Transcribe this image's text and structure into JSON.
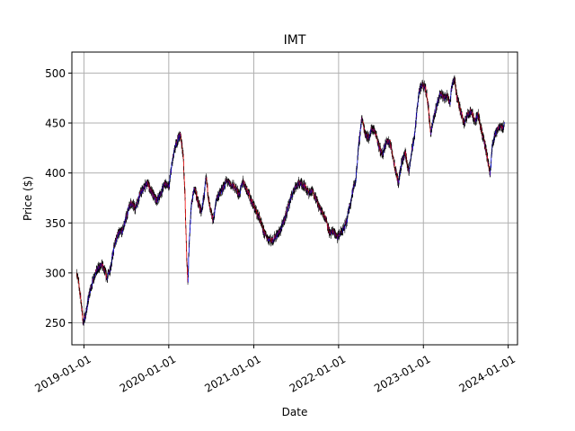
{
  "chart_data": {
    "type": "line",
    "title": "IMT",
    "xlabel": "Date",
    "ylabel": "Price ($)",
    "x_ticks": [
      "2019-01-01",
      "2020-01-01",
      "2021-01-01",
      "2022-01-01",
      "2023-01-01",
      "2024-01-01"
    ],
    "y_ticks": [
      250,
      300,
      350,
      400,
      450,
      500
    ],
    "xlim": [
      "2018-11-10",
      "2024-02-10"
    ],
    "ylim": [
      228,
      521
    ],
    "grid": true,
    "legend": "none",
    "colors": {
      "body": "#0000ff",
      "wick": "#000000",
      "down": "#ff0000",
      "grid": "#b0b0b0"
    },
    "series": [
      {
        "style": "candlestick",
        "x": [
          "2018-12-01",
          "2018-12-10",
          "2018-12-20",
          "2018-12-28",
          "2019-01-08",
          "2019-01-25",
          "2019-02-15",
          "2019-03-05",
          "2019-03-20",
          "2019-04-10",
          "2019-04-25",
          "2019-05-10",
          "2019-05-25",
          "2019-06-15",
          "2019-07-01",
          "2019-07-20",
          "2019-08-10",
          "2019-08-28",
          "2019-09-15",
          "2019-10-01",
          "2019-10-20",
          "2019-11-10",
          "2019-11-28",
          "2019-12-15",
          "2020-01-01",
          "2020-01-15",
          "2020-01-28",
          "2020-02-10",
          "2020-02-20",
          "2020-03-02",
          "2020-03-10",
          "2020-03-17",
          "2020-03-23",
          "2020-03-28",
          "2020-04-08",
          "2020-04-20",
          "2020-05-05",
          "2020-05-20",
          "2020-06-01",
          "2020-06-10",
          "2020-06-25",
          "2020-07-10",
          "2020-07-25",
          "2020-08-15",
          "2020-09-05",
          "2020-09-25",
          "2020-10-15",
          "2020-10-30",
          "2020-11-15",
          "2020-12-05",
          "2020-12-25",
          "2021-01-10",
          "2021-01-25",
          "2021-02-10",
          "2021-03-01",
          "2021-03-20",
          "2021-04-10",
          "2021-04-25",
          "2021-05-15",
          "2021-06-05",
          "2021-06-25",
          "2021-07-15",
          "2021-08-05",
          "2021-08-25",
          "2021-09-10",
          "2021-09-25",
          "2021-10-10",
          "2021-10-25",
          "2021-11-10",
          "2021-11-25",
          "2021-12-10",
          "2021-12-25",
          "2022-01-10",
          "2022-01-25",
          "2022-02-05",
          "2022-02-15",
          "2022-02-25",
          "2022-03-05",
          "2022-03-15",
          "2022-03-25",
          "2022-04-10",
          "2022-04-25",
          "2022-05-10",
          "2022-05-25",
          "2022-06-10",
          "2022-06-25",
          "2022-07-10",
          "2022-07-25",
          "2022-08-10",
          "2022-08-20",
          "2022-09-01",
          "2022-09-15",
          "2022-09-30",
          "2022-10-15",
          "2022-10-30",
          "2022-11-10",
          "2022-11-25",
          "2022-12-10",
          "2022-12-25",
          "2023-01-10",
          "2023-01-20",
          "2023-02-01",
          "2023-02-15",
          "2023-03-01",
          "2023-03-15",
          "2023-04-01",
          "2023-04-15",
          "2023-04-25",
          "2023-05-05",
          "2023-05-15",
          "2023-05-25",
          "2023-06-10",
          "2023-06-25",
          "2023-07-10",
          "2023-07-25",
          "2023-08-10",
          "2023-08-25",
          "2023-09-10",
          "2023-09-25",
          "2023-10-05",
          "2023-10-15",
          "2023-10-25",
          "2023-11-05",
          "2023-11-15",
          "2023-11-25",
          "2023-12-05",
          "2023-12-15"
        ],
        "y": [
          300,
          288,
          270,
          250,
          258,
          280,
          298,
          305,
          308,
          295,
          305,
          325,
          338,
          342,
          355,
          370,
          365,
          378,
          385,
          390,
          380,
          372,
          380,
          390,
          385,
          410,
          425,
          435,
          438,
          420,
          380,
          320,
          290,
          330,
          370,
          385,
          372,
          360,
          378,
          395,
          365,
          352,
          375,
          382,
          392,
          388,
          385,
          378,
          392,
          382,
          370,
          362,
          355,
          342,
          335,
          332,
          338,
          342,
          355,
          372,
          385,
          390,
          388,
          380,
          382,
          375,
          365,
          360,
          352,
          338,
          342,
          335,
          340,
          345,
          352,
          365,
          375,
          385,
          392,
          420,
          455,
          440,
          435,
          445,
          440,
          425,
          418,
          432,
          430,
          420,
          405,
          390,
          412,
          420,
          400,
          420,
          440,
          478,
          488,
          485,
          470,
          440,
          455,
          470,
          480,
          475,
          478,
          470,
          490,
          495,
          475,
          462,
          450,
          458,
          462,
          452,
          458,
          440,
          425,
          412,
          398,
          430,
          438,
          442,
          448,
          445,
          448
        ]
      }
    ]
  }
}
